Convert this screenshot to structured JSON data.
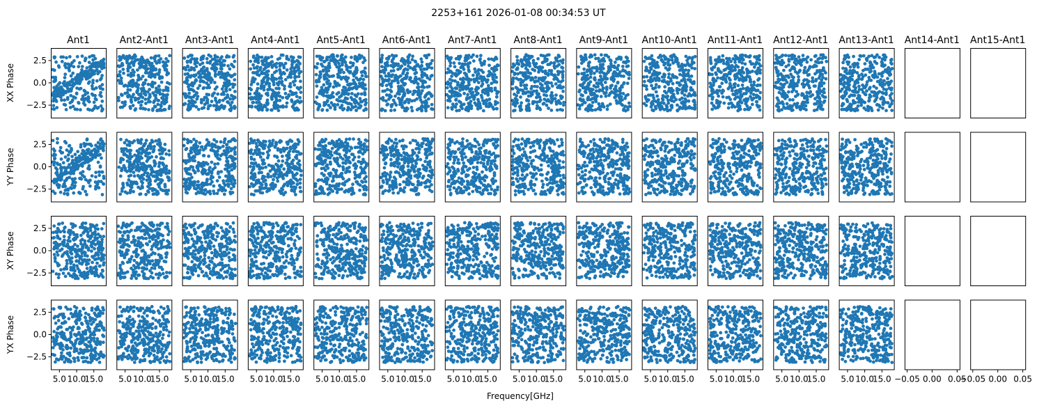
{
  "chart_data": {
    "type": "scatter",
    "title": "2253+161 2026-01-08 00:34:53 UT",
    "xlabel": "Frequency[GHz]",
    "columns": [
      "Ant1",
      "Ant2-Ant1",
      "Ant3-Ant1",
      "Ant4-Ant1",
      "Ant5-Ant1",
      "Ant6-Ant1",
      "Ant7-Ant1",
      "Ant8-Ant1",
      "Ant9-Ant1",
      "Ant10-Ant1",
      "Ant11-Ant1",
      "Ant12-Ant1",
      "Ant13-Ant1",
      "Ant14-Ant1",
      "Ant15-Ant1"
    ],
    "rows": [
      "XX Phase",
      "YY Phase",
      "XY Phase",
      "YX Phase"
    ],
    "ylim": [
      -3.9,
      3.9
    ],
    "yticks": [
      2.5,
      0.0,
      -2.5
    ],
    "ytick_labels": [
      "2.5",
      "0.0",
      "−2.5"
    ],
    "xlim_data": [
      2.5,
      18.5
    ],
    "xticks_data": [
      5.0,
      10.0,
      15.0
    ],
    "xtick_labels_data": [
      "5.0",
      "10.0",
      "15.0"
    ],
    "xlim_empty": [
      -0.055,
      0.055
    ],
    "xticks_empty": [
      -0.05,
      0.0,
      0.05
    ],
    "xtick_labels_empty": [
      "−0.05",
      "0.00",
      "0.05"
    ],
    "marker_color": "#1f77b4",
    "points_per_panel": 320,
    "freq_range": [
      3.0,
      18.0
    ],
    "phase_range": [
      -3.14,
      3.14
    ],
    "empty_columns": [
      "Ant14-Ant1",
      "Ant15-Ant1"
    ],
    "grid": false,
    "legend": "none"
  }
}
